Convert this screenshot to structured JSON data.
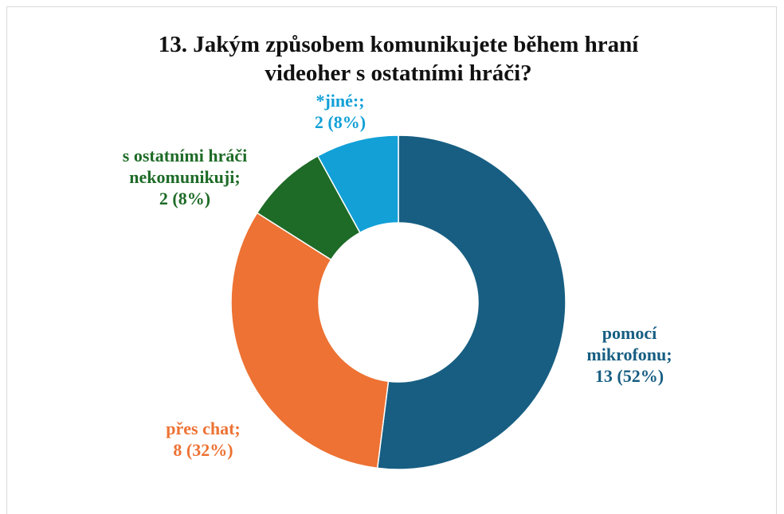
{
  "chart_data": {
    "type": "donut",
    "title": "13. Jakým způsobem komunikujete během hraní videoher s ostatními hráči?",
    "categories": [
      "pomocí mikrofonu;",
      "přes chat;",
      "s ostatními hráči nekomunikuji;",
      "*jiné:;"
    ],
    "values": [
      13,
      8,
      2,
      2
    ],
    "value_labels": [
      "13 (52%)",
      "8 (32%)",
      "2 (8%)",
      "2 (8%)"
    ],
    "colors": [
      "#175e82",
      "#ed7233",
      "#1e6b27",
      "#12a0d7"
    ]
  }
}
